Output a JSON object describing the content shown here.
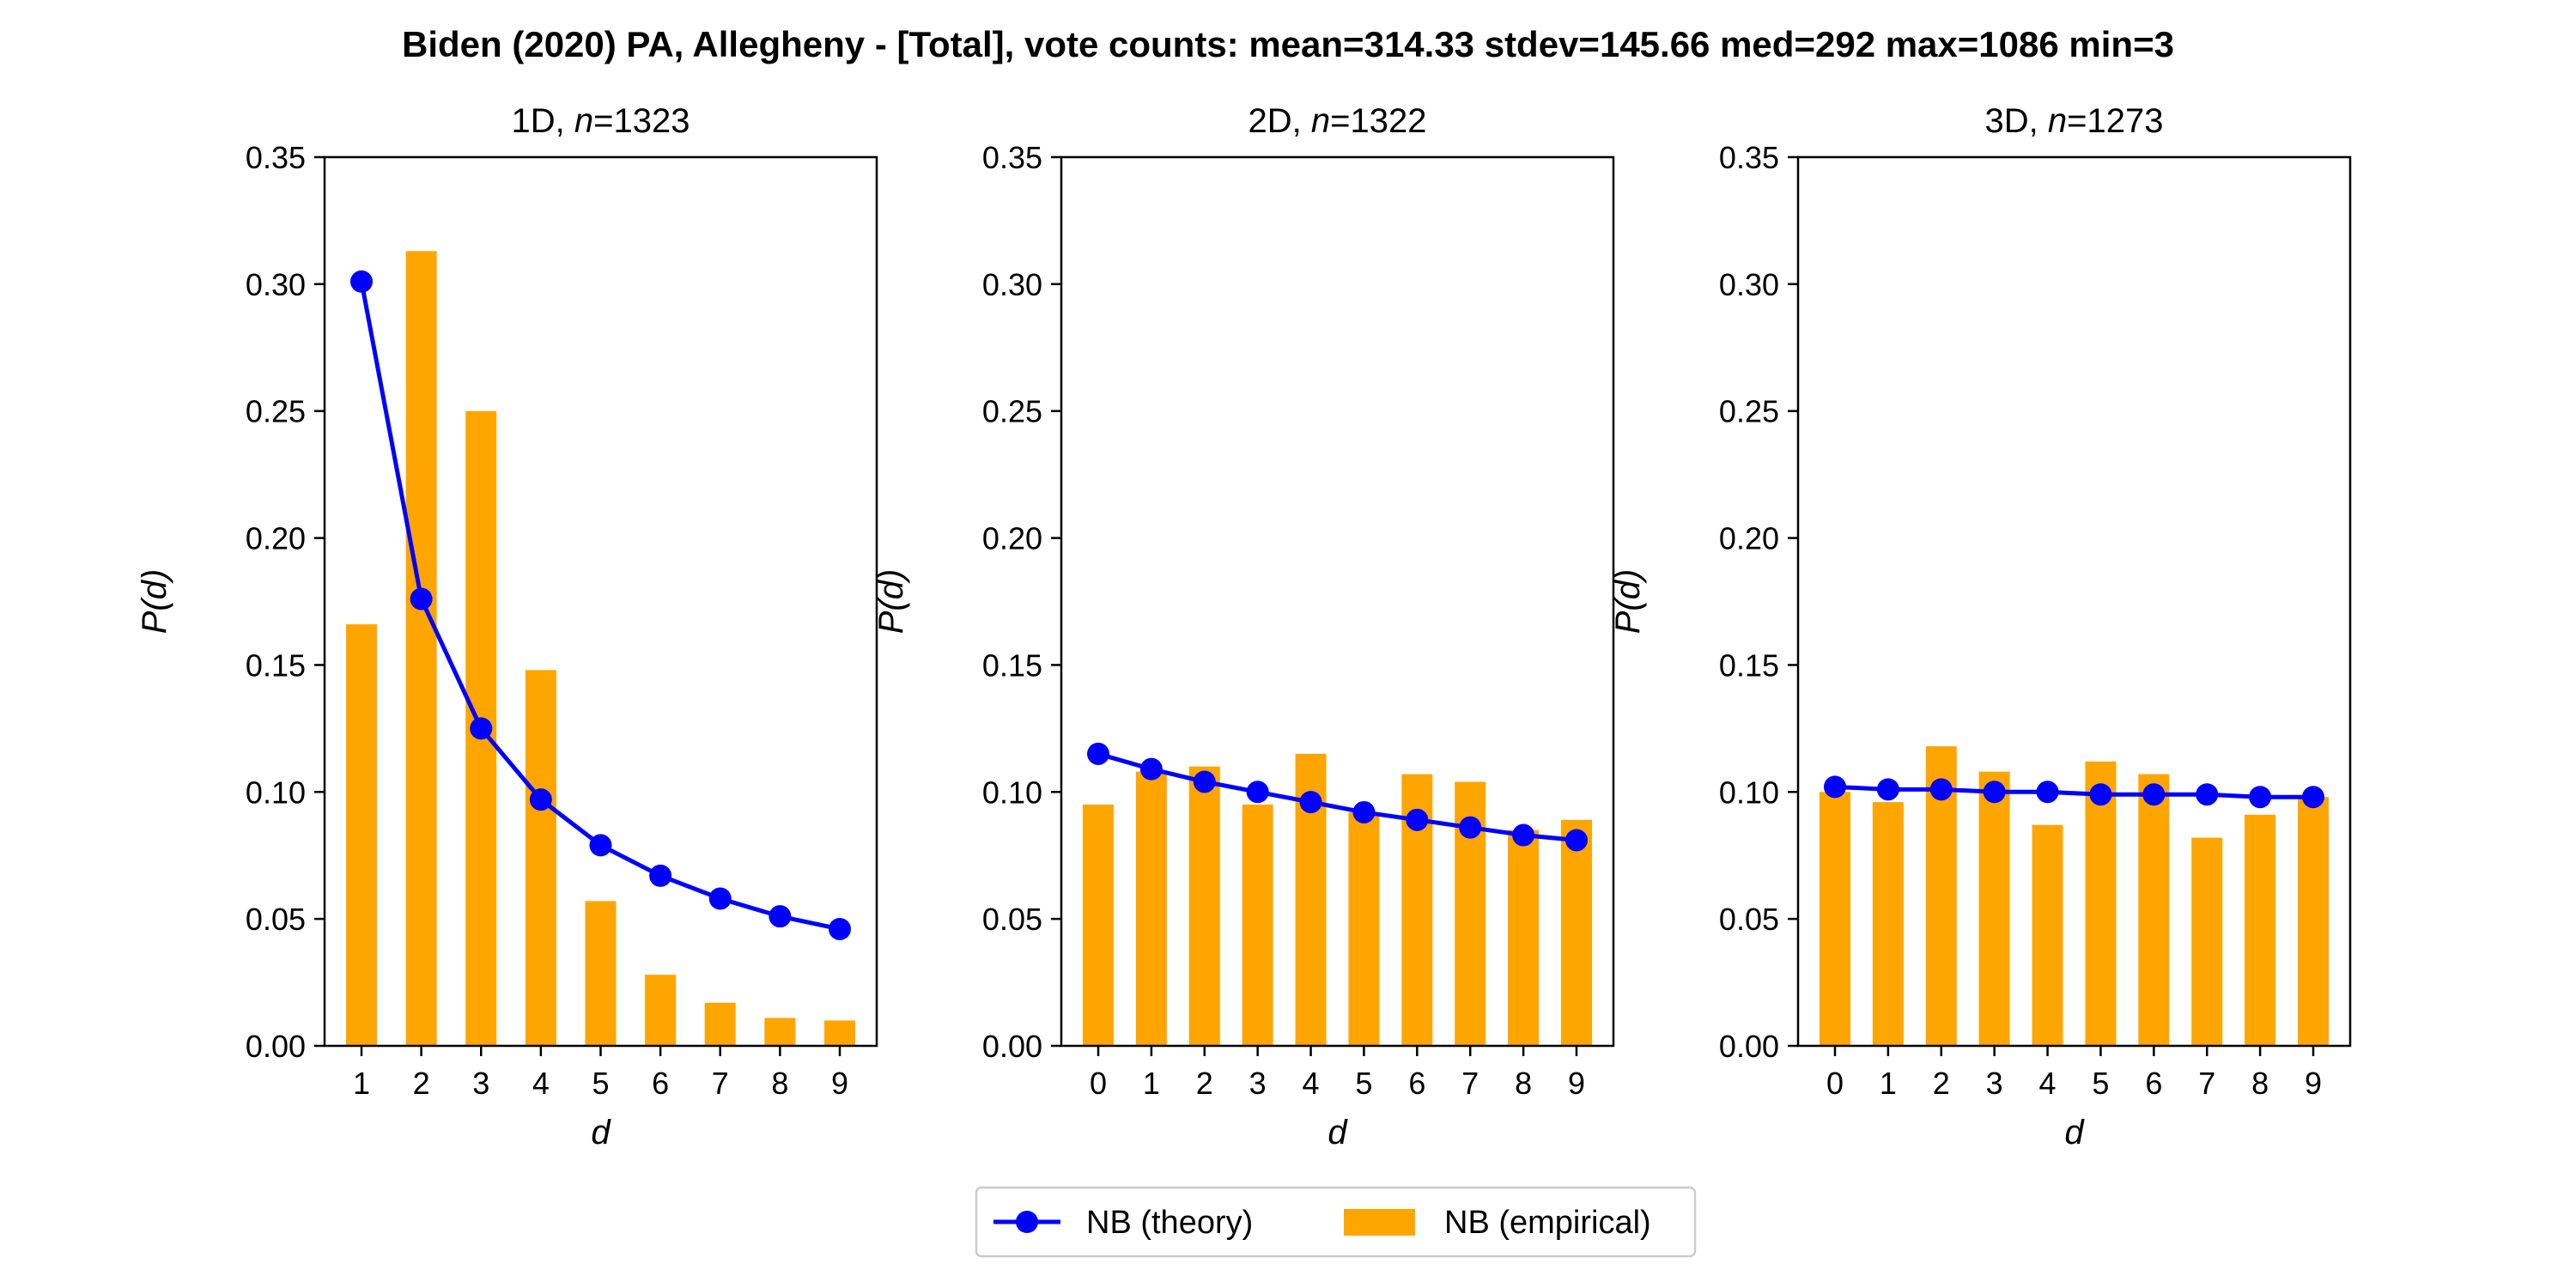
{
  "figure": {
    "title": "Biden (2020) PA, Allegheny - [Total], vote counts: mean=314.33 stdev=145.66 med=292 max=1086 min=3"
  },
  "legend": {
    "theory_label": "NB (theory)",
    "empirical_label": "NB (empirical)"
  },
  "colors": {
    "theory": "#0000ff",
    "empirical": "#ffa500",
    "axes": "#000000"
  },
  "chart_data": [
    {
      "type": "bar",
      "title_prefix": "1D, ",
      "title_n": "n",
      "title_value": "=1323",
      "xlabel": "d",
      "ylabel_pre": "P(",
      "ylabel_var": "d",
      "ylabel_post": ")",
      "ylim": [
        0,
        0.35
      ],
      "yticks": [
        "0.00",
        "0.05",
        "0.10",
        "0.15",
        "0.20",
        "0.25",
        "0.30",
        "0.35"
      ],
      "categories": [
        "1",
        "2",
        "3",
        "4",
        "5",
        "6",
        "7",
        "8",
        "9"
      ],
      "series": [
        {
          "name": "NB (empirical)",
          "kind": "bar",
          "values": [
            0.166,
            0.313,
            0.25,
            0.148,
            0.057,
            0.028,
            0.017,
            0.011,
            0.01
          ]
        },
        {
          "name": "NB (theory)",
          "kind": "line",
          "values": [
            0.301,
            0.176,
            0.125,
            0.097,
            0.079,
            0.067,
            0.058,
            0.051,
            0.046
          ]
        }
      ]
    },
    {
      "type": "bar",
      "title_prefix": "2D, ",
      "title_n": "n",
      "title_value": "=1322",
      "xlabel": "d",
      "ylabel_pre": "P(",
      "ylabel_var": "d",
      "ylabel_post": ")",
      "ylim": [
        0,
        0.35
      ],
      "yticks": [
        "0.00",
        "0.05",
        "0.10",
        "0.15",
        "0.20",
        "0.25",
        "0.30",
        "0.35"
      ],
      "categories": [
        "0",
        "1",
        "2",
        "3",
        "4",
        "5",
        "6",
        "7",
        "8",
        "9"
      ],
      "series": [
        {
          "name": "NB (empirical)",
          "kind": "bar",
          "values": [
            0.095,
            0.108,
            0.11,
            0.095,
            0.115,
            0.092,
            0.107,
            0.104,
            0.085,
            0.089
          ]
        },
        {
          "name": "NB (theory)",
          "kind": "line",
          "values": [
            0.115,
            0.109,
            0.104,
            0.1,
            0.096,
            0.092,
            0.089,
            0.086,
            0.083,
            0.081
          ]
        }
      ]
    },
    {
      "type": "bar",
      "title_prefix": "3D, ",
      "title_n": "n",
      "title_value": "=1273",
      "xlabel": "d",
      "ylabel_pre": "P(",
      "ylabel_var": "d",
      "ylabel_post": ")",
      "ylim": [
        0,
        0.35
      ],
      "yticks": [
        "0.00",
        "0.05",
        "0.10",
        "0.15",
        "0.20",
        "0.25",
        "0.30",
        "0.35"
      ],
      "categories": [
        "0",
        "1",
        "2",
        "3",
        "4",
        "5",
        "6",
        "7",
        "8",
        "9"
      ],
      "series": [
        {
          "name": "NB (empirical)",
          "kind": "bar",
          "values": [
            0.1,
            0.096,
            0.118,
            0.108,
            0.087,
            0.112,
            0.107,
            0.082,
            0.091,
            0.098
          ]
        },
        {
          "name": "NB (theory)",
          "kind": "line",
          "values": [
            0.102,
            0.101,
            0.101,
            0.1,
            0.1,
            0.099,
            0.099,
            0.099,
            0.098,
            0.098
          ]
        }
      ]
    }
  ]
}
